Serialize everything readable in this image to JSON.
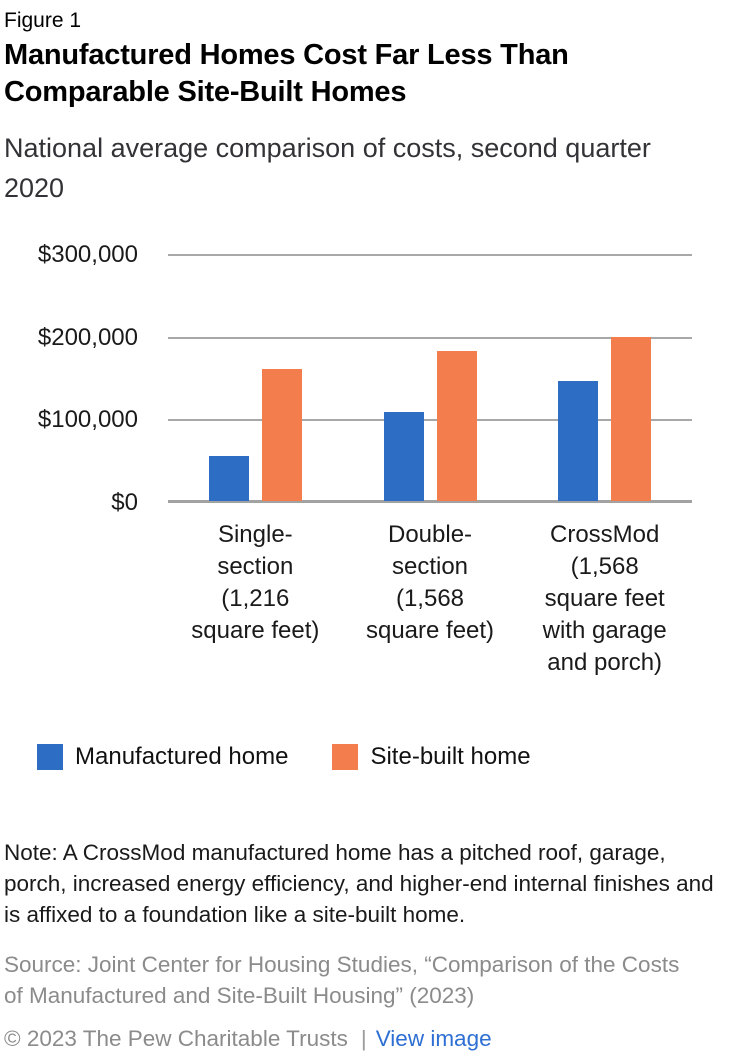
{
  "header": {
    "figure_label": "Figure 1",
    "title": "Manufactured Homes Cost Far Less Than Comparable Site-Built Homes",
    "subtitle": "National average comparison of costs, second quarter 2020"
  },
  "chart_data": {
    "type": "bar",
    "categories": [
      "Single-\nsection\n(1,216\nsquare feet)",
      "Double-\nsection\n(1,568\nsquare feet)",
      "CrossMod\n(1,568\nsquare feet\nwith garage\nand porch)"
    ],
    "series": [
      {
        "name": "Manufactured home",
        "color": "#2d6ec4",
        "values": [
          54000,
          108000,
          145000
        ]
      },
      {
        "name": "Site-built home",
        "color": "#f47d4d",
        "values": [
          160000,
          182000,
          198000
        ]
      }
    ],
    "title": "Manufactured Homes Cost Far Less Than Comparable Site-Built Homes",
    "xlabel": "",
    "ylabel": "",
    "ylim": [
      0,
      300000
    ],
    "ytick_interval": 100000,
    "ytick_labels": [
      "$0",
      "$100,000",
      "$200,000",
      "$300,000"
    ],
    "grid": true,
    "gridline_color": "#a8a8a8",
    "legend_position": "bottom"
  },
  "note": "Note: A CrossMod manufactured home has a pitched roof, garage, porch, increased energy efficiency, and higher-end internal finishes and is affixed to a foundation like a site-built home.",
  "source": "Source: Joint Center for Housing Studies, “Comparison of the Costs of Manufactured and Site-Built Housing” (2023)",
  "footer": {
    "copyright": "© 2023 The Pew Charitable Trusts",
    "separator": "|",
    "link_label": "View image"
  }
}
